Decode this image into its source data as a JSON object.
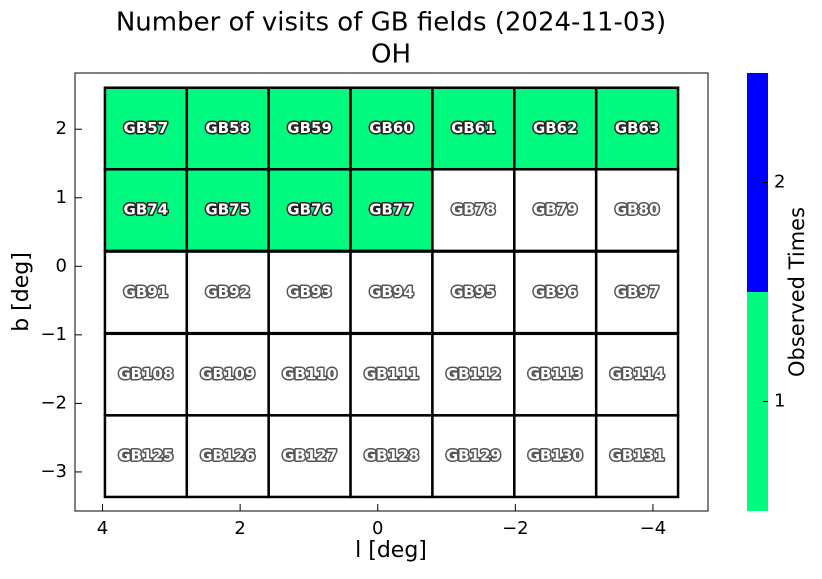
{
  "chart_data": {
    "type": "field-grid",
    "title": "Number of visits of GB fields (2024-11-03)",
    "subtitle": "OH",
    "x_label": "l [deg]",
    "y_label": "b [deg]",
    "xlim": [
      4.4,
      -4.8
    ],
    "xticks": [
      4,
      2,
      0,
      {
        "value": -2,
        "label": "−2"
      },
      {
        "value": -4,
        "label": "−4"
      }
    ],
    "ylim": [
      -3.57,
      2.82
    ],
    "yticks": [
      2,
      1,
      0,
      {
        "value": -1,
        "label": "−1"
      },
      {
        "value": -2,
        "label": "−2"
      },
      {
        "value": -3,
        "label": "−3"
      }
    ],
    "columns_l": [
      3.37,
      2.18,
      0.99,
      -0.2,
      -1.39,
      -2.58,
      -3.77
    ],
    "rows_b": [
      2.01,
      0.82,
      -0.38,
      -1.58,
      -2.77
    ],
    "fields": [
      [
        "GB57",
        "GB58",
        "GB59",
        "GB60",
        "GB61",
        "GB62",
        "GB63"
      ],
      [
        "GB74",
        "GB75",
        "GB76",
        "GB77",
        "GB78",
        "GB79",
        "GB80"
      ],
      [
        "GB91",
        "GB92",
        "GB93",
        "GB94",
        "GB95",
        "GB96",
        "GB97"
      ],
      [
        "GB108",
        "GB109",
        "GB110",
        "GB111",
        "GB112",
        "GB113",
        "GB114"
      ],
      [
        "GB125",
        "GB126",
        "GB127",
        "GB128",
        "GB129",
        "GB130",
        "GB131"
      ]
    ],
    "values": [
      [
        1,
        1,
        1,
        1,
        1,
        1,
        1
      ],
      [
        1,
        1,
        1,
        1,
        0,
        0,
        0
      ],
      [
        0,
        0,
        0,
        0,
        0,
        0,
        0
      ],
      [
        0,
        0,
        0,
        0,
        0,
        0,
        0
      ],
      [
        0,
        0,
        0,
        0,
        0,
        0,
        0
      ]
    ],
    "colorbar_label": "Observed Times",
    "clim": [
      0.5,
      2.5
    ],
    "colorbar_ticks": [
      1,
      2
    ],
    "colors": [
      "#00fa80",
      "#0000ff"
    ],
    "empty_color": "#ffffff"
  }
}
